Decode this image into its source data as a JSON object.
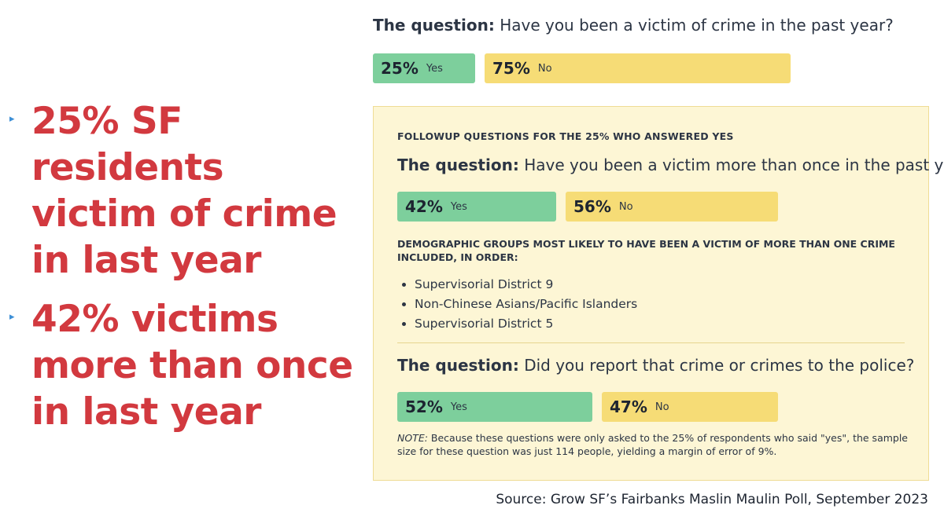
{
  "bullets": [
    "25% SF residents victim of crime in last year",
    "42% victims more than once in last year"
  ],
  "bullet_marker": "▸",
  "q1": {
    "prefix": "The question:",
    "text": "Have you been a victim of crime in the past year?"
  },
  "panel": {
    "heading": "FOLLOWUP QUESTIONS FOR THE 25% WHO ANSWERED YES",
    "q2": {
      "prefix": "The question:",
      "text": "Have you been a victim more than once in the past year?"
    },
    "demographic_heading": "DEMOGRAPHIC GROUPS MOST LIKELY TO HAVE BEEN A VICTIM OF MORE THAN ONE CRIME INCLUDED, IN ORDER:",
    "groups": [
      "Supervisorial District 9",
      "Non-Chinese Asians/Pacific Islanders",
      "Supervisorial District 5"
    ],
    "q3": {
      "prefix": "The question:",
      "text": "Did you report that crime or crimes to the police?"
    },
    "note_label": "NOTE:",
    "note_text": " Because these questions were only asked to the 25% of respondents who said \"yes\", the sample size for these question was just 114 people, yielding a margin of error of 9%."
  },
  "source": "Source: Grow SF’s Fairbanks Maslin Maulin Poll, September 2023",
  "colors": {
    "yes": "#7dcf9c",
    "no": "#f6dc76",
    "headline": "#d2393f",
    "panel": "#fdf6d5"
  },
  "chart_data": [
    {
      "type": "bar",
      "title": "Have you been a victim of crime in the past year?",
      "categories": [
        "Yes",
        "No"
      ],
      "values": [
        25,
        75
      ],
      "labels": [
        "25%",
        "75%"
      ]
    },
    {
      "type": "bar",
      "title": "Have you been a victim more than once in the past year?",
      "categories": [
        "Yes",
        "No"
      ],
      "values": [
        42,
        56
      ],
      "labels": [
        "42%",
        "56%"
      ]
    },
    {
      "type": "bar",
      "title": "Did you report that crime or crimes to the police?",
      "categories": [
        "Yes",
        "No"
      ],
      "values": [
        52,
        47
      ],
      "labels": [
        "52%",
        "47%"
      ]
    }
  ]
}
